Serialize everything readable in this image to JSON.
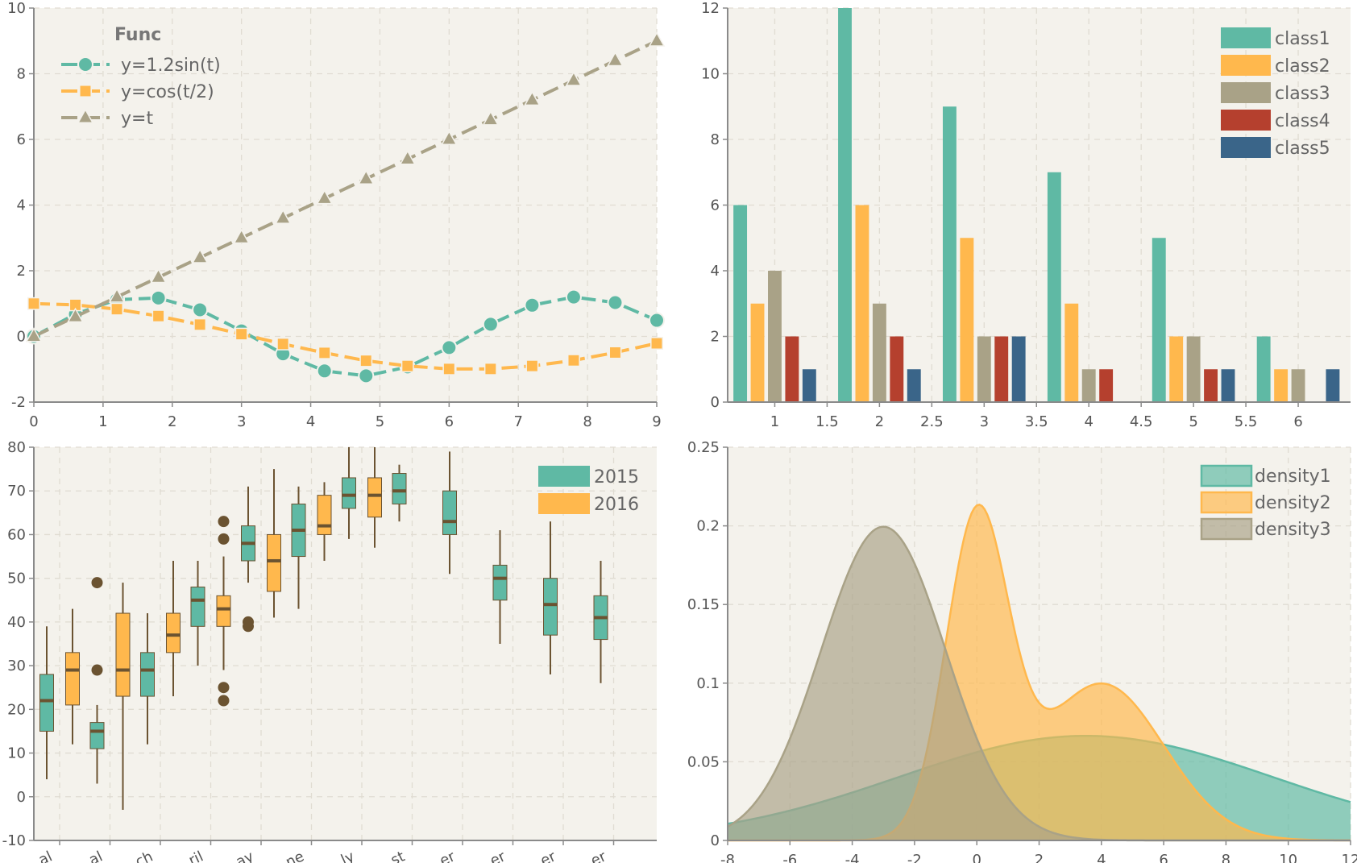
{
  "colors": {
    "background": "#f4f2ec",
    "grid": "#e0dcd2",
    "axis": "#8a8a8a",
    "teal": "#5fb9a4",
    "orange": "#ffb84d",
    "khaki": "#a9a287",
    "red": "#b5402e",
    "blue": "#3a6589",
    "box_line": "#6b5331"
  },
  "chart_data": [
    {
      "type": "line",
      "legend_title": "Func",
      "legend_position": "top-left",
      "grid": true,
      "xlim": [
        0,
        9
      ],
      "ylim": [
        -2,
        10
      ],
      "x_ticks": [
        "0",
        "1",
        "2",
        "3",
        "4",
        "5",
        "6",
        "7",
        "8",
        "9"
      ],
      "y_ticks": [
        "-2",
        "0",
        "2",
        "4",
        "6",
        "8",
        "10"
      ],
      "x": [
        0,
        0.6,
        1.2,
        1.8,
        2.4,
        3.0,
        3.6,
        4.2,
        4.8,
        5.4,
        6.0,
        6.6,
        7.2,
        7.8,
        8.4,
        9.0
      ],
      "series": [
        {
          "name": "y=1.2sin(t)",
          "marker": "circle",
          "color": "#5fb9a4",
          "values": [
            0,
            0.68,
            1.12,
            1.17,
            0.81,
            0.17,
            -0.53,
            -1.05,
            -1.2,
            -0.93,
            -0.34,
            0.37,
            0.95,
            1.2,
            1.03,
            0.49
          ]
        },
        {
          "name": "y=cos(t/2)",
          "marker": "square",
          "color": "#ffb84d",
          "values": [
            1.0,
            0.96,
            0.83,
            0.62,
            0.36,
            0.07,
            -0.23,
            -0.5,
            -0.74,
            -0.9,
            -0.99,
            -0.99,
            -0.9,
            -0.73,
            -0.49,
            -0.21
          ]
        },
        {
          "name": "y=t",
          "marker": "triangle",
          "color": "#a9a287",
          "values": [
            0,
            0.6,
            1.2,
            1.8,
            2.4,
            3.0,
            3.6,
            4.2,
            4.8,
            5.4,
            6.0,
            6.6,
            7.2,
            7.8,
            8.4,
            9.0
          ]
        }
      ]
    },
    {
      "type": "bar",
      "legend_position": "top-right",
      "grid": true,
      "xlim": [
        0.55,
        6.5
      ],
      "ylim": [
        0,
        12
      ],
      "x_ticks": [
        "1",
        "1.5",
        "2",
        "2.5",
        "3",
        "3.5",
        "4",
        "4.5",
        "5",
        "5.5",
        "6"
      ],
      "y_ticks": [
        "0",
        "2",
        "4",
        "6",
        "8",
        "10",
        "12"
      ],
      "categories": [
        1,
        2,
        3,
        4,
        5,
        6
      ],
      "series": [
        {
          "name": "class1",
          "color": "#5fb9a4",
          "values": [
            6,
            12,
            9,
            7,
            5,
            2
          ]
        },
        {
          "name": "class2",
          "color": "#ffb84d",
          "values": [
            3,
            6,
            5,
            3,
            2,
            1
          ]
        },
        {
          "name": "class3",
          "color": "#a9a287",
          "values": [
            4,
            3,
            2,
            1,
            2,
            1
          ]
        },
        {
          "name": "class4",
          "color": "#b5402e",
          "values": [
            2,
            2,
            2,
            1,
            1,
            0
          ]
        },
        {
          "name": "class5",
          "color": "#3a6589",
          "values": [
            1,
            1,
            2,
            0,
            1,
            1
          ]
        }
      ]
    },
    {
      "type": "box",
      "legend_position": "top-right",
      "grid": true,
      "ylim": [
        -10,
        80
      ],
      "y_ticks": [
        "-10",
        "0",
        "10",
        "20",
        "30",
        "40",
        "50",
        "60",
        "70",
        "80"
      ],
      "x_ticks_cropped": [
        "al",
        "al",
        "ch",
        "ril",
        "ay",
        "ne",
        "ly",
        "st",
        "er",
        "er",
        "er",
        "er"
      ],
      "series": [
        {
          "name": "2015",
          "color": "#5fb9a4"
        },
        {
          "name": "2016",
          "color": "#ffb84d"
        }
      ],
      "boxes": [
        {
          "group": 0,
          "series": 0,
          "min": 4,
          "q1": 15,
          "median": 22,
          "q3": 28,
          "max": 39,
          "outliers": []
        },
        {
          "group": 0,
          "series": 1,
          "min": 12,
          "q1": 21,
          "median": 29,
          "q3": 33,
          "max": 43,
          "outliers": []
        },
        {
          "group": 1,
          "series": 0,
          "min": 3,
          "q1": 11,
          "median": 15,
          "q3": 17,
          "max": 21,
          "outliers": [
            29,
            49
          ]
        },
        {
          "group": 1,
          "series": 1,
          "min": -3,
          "q1": 23,
          "median": 29,
          "q3": 42,
          "max": 49,
          "outliers": []
        },
        {
          "group": 2,
          "series": 0,
          "min": 12,
          "q1": 23,
          "median": 29,
          "q3": 33,
          "max": 42,
          "outliers": []
        },
        {
          "group": 2,
          "series": 1,
          "min": 23,
          "q1": 33,
          "median": 37,
          "q3": 42,
          "max": 54,
          "outliers": []
        },
        {
          "group": 3,
          "series": 0,
          "min": 30,
          "q1": 39,
          "median": 45,
          "q3": 48,
          "max": 54,
          "outliers": []
        },
        {
          "group": 3,
          "series": 1,
          "min": 29,
          "q1": 39,
          "median": 43,
          "q3": 46,
          "max": 55,
          "outliers": [
            22,
            25,
            59,
            63
          ]
        },
        {
          "group": 4,
          "series": 0,
          "min": 49,
          "q1": 54,
          "median": 58,
          "q3": 62,
          "max": 71,
          "outliers": [
            39,
            40
          ]
        },
        {
          "group": 4,
          "series": 1,
          "min": 41,
          "q1": 47,
          "median": 54,
          "q3": 60,
          "max": 75,
          "outliers": []
        },
        {
          "group": 5,
          "series": 0,
          "min": 43,
          "q1": 55,
          "median": 61,
          "q3": 67,
          "max": 71,
          "outliers": []
        },
        {
          "group": 5,
          "series": 1,
          "min": 54,
          "q1": 60,
          "median": 62,
          "q3": 69,
          "max": 72,
          "outliers": []
        },
        {
          "group": 6,
          "series": 0,
          "min": 59,
          "q1": 66,
          "median": 69,
          "q3": 73,
          "max": 80,
          "outliers": []
        },
        {
          "group": 6,
          "series": 1,
          "min": 57,
          "q1": 64,
          "median": 69,
          "q3": 73,
          "max": 80,
          "outliers": []
        },
        {
          "group": 7,
          "series": 0,
          "min": 63,
          "q1": 67,
          "median": 70,
          "q3": 74,
          "max": 76,
          "outliers": []
        },
        {
          "group": 8,
          "series": 0,
          "min": 51,
          "q1": 60,
          "median": 63,
          "q3": 70,
          "max": 79,
          "outliers": []
        },
        {
          "group": 9,
          "series": 0,
          "min": 35,
          "q1": 45,
          "median": 50,
          "q3": 53,
          "max": 61,
          "outliers": []
        },
        {
          "group": 10,
          "series": 0,
          "min": 28,
          "q1": 37,
          "median": 44,
          "q3": 50,
          "max": 63,
          "outliers": []
        },
        {
          "group": 11,
          "series": 0,
          "min": 26,
          "q1": 36,
          "median": 41,
          "q3": 46,
          "max": 54,
          "outliers": []
        }
      ]
    },
    {
      "type": "area",
      "legend_position": "top-right",
      "grid": true,
      "xlim": [
        -8,
        12
      ],
      "ylim": [
        0,
        0.25
      ],
      "x_ticks": [
        "-8",
        "-6",
        "-4",
        "-2",
        "0",
        "2",
        "4",
        "6",
        "8",
        "10",
        "12"
      ],
      "y_ticks": [
        "0",
        "0.05",
        "0.1",
        "0.15",
        "0.2",
        "0.25"
      ],
      "series": [
        {
          "name": "density1",
          "color": "#5fb9a4",
          "mixture": [
            {
              "w": 1.0,
              "mu": 3.5,
              "sigma": 6.0
            }
          ]
        },
        {
          "name": "density2",
          "color": "#ffb84d",
          "mixture": [
            {
              "w": 0.5,
              "mu": 0,
              "sigma": 1.0
            },
            {
              "w": 0.5,
              "mu": 4,
              "sigma": 2.0
            }
          ]
        },
        {
          "name": "density3",
          "color": "#a9a287",
          "mixture": [
            {
              "w": 1.0,
              "mu": -3,
              "sigma": 2.0
            }
          ]
        }
      ]
    }
  ]
}
